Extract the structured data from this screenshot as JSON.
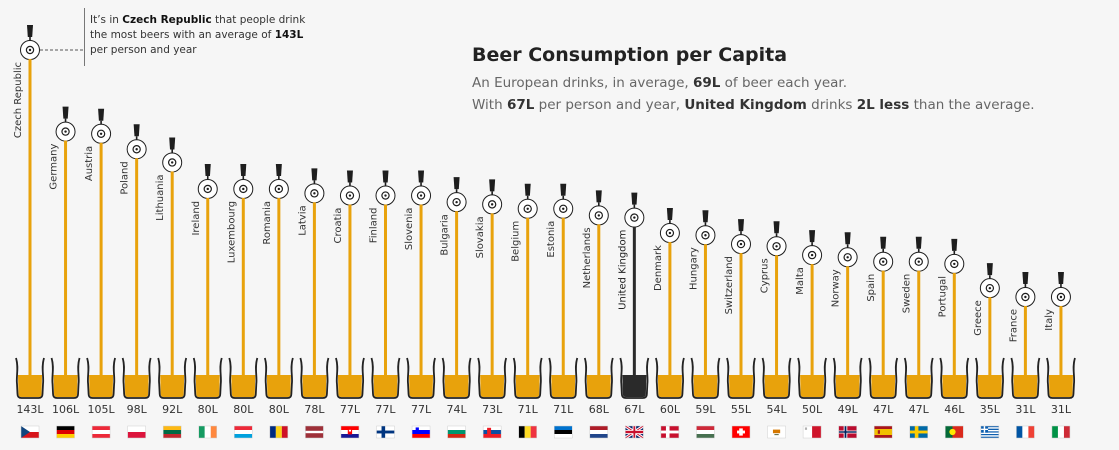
{
  "title": "Beer Consumption per Capita",
  "subtitle": {
    "line1_pre": "An European drinks, in average, ",
    "line1_bold": "69L",
    "line1_post": " of beer each year.",
    "line2_pre": "With ",
    "line2_bold1": "67L",
    "line2_mid1": " per person and year, ",
    "line2_bold2": "United Kingdom",
    "line2_mid2": " drinks ",
    "line2_bold3": "2L less",
    "line2_post": " than the average."
  },
  "annotation": {
    "pre": "It’s in ",
    "bold1": "Czech Republic",
    "mid": " that people drink the most beers with an average of ",
    "bold2": "143L",
    "post": " per person and year"
  },
  "colors": {
    "beer": "#e8a20c",
    "highlight": "#2a2a2a",
    "tap": "#1e1e1e",
    "glass_outline": "#222222"
  },
  "chart_data": {
    "type": "bar",
    "title": "Beer Consumption per Capita",
    "unit": "L",
    "highlight": "United Kingdom",
    "average": 69,
    "ylim": [
      0,
      143
    ],
    "categories": [
      "Czech Republic",
      "Germany",
      "Austria",
      "Poland",
      "Lithuania",
      "Ireland",
      "Luxembourg",
      "Romania",
      "Latvia",
      "Croatia",
      "Finland",
      "Slovenia",
      "Bulgaria",
      "Slovakia",
      "Belgium",
      "Estonia",
      "Netherlands",
      "United Kingdom",
      "Denmark",
      "Hungary",
      "Switzerland",
      "Cyprus",
      "Malta",
      "Norway",
      "Spain",
      "Sweden",
      "Portugal",
      "Greece",
      "France",
      "Italy"
    ],
    "values": [
      143,
      106,
      105,
      98,
      92,
      80,
      80,
      80,
      78,
      77,
      77,
      77,
      74,
      73,
      71,
      71,
      68,
      67,
      60,
      59,
      55,
      54,
      50,
      49,
      47,
      47,
      46,
      35,
      31,
      31
    ],
    "value_labels": [
      "143L",
      "106L",
      "105L",
      "98L",
      "92L",
      "80L",
      "80L",
      "80L",
      "78L",
      "77L",
      "77L",
      "77L",
      "74L",
      "73L",
      "71L",
      "71L",
      "68L",
      "67L",
      "60L",
      "59L",
      "55L",
      "54L",
      "50L",
      "49L",
      "47L",
      "47L",
      "46L",
      "35L",
      "31L",
      "31L"
    ],
    "flag_icons": [
      "flag-czech-republic-icon",
      "flag-germany-icon",
      "flag-austria-icon",
      "flag-poland-icon",
      "flag-lithuania-icon",
      "flag-ireland-icon",
      "flag-luxembourg-icon",
      "flag-romania-icon",
      "flag-latvia-icon",
      "flag-croatia-icon",
      "flag-finland-icon",
      "flag-slovenia-icon",
      "flag-bulgaria-icon",
      "flag-slovakia-icon",
      "flag-belgium-icon",
      "flag-estonia-icon",
      "flag-netherlands-icon",
      "flag-united-kingdom-icon",
      "flag-denmark-icon",
      "flag-hungary-icon",
      "flag-switzerland-icon",
      "flag-cyprus-icon",
      "flag-malta-icon",
      "flag-norway-icon",
      "flag-spain-icon",
      "flag-sweden-icon",
      "flag-portugal-icon",
      "flag-greece-icon",
      "flag-france-icon",
      "flag-italy-icon"
    ]
  }
}
